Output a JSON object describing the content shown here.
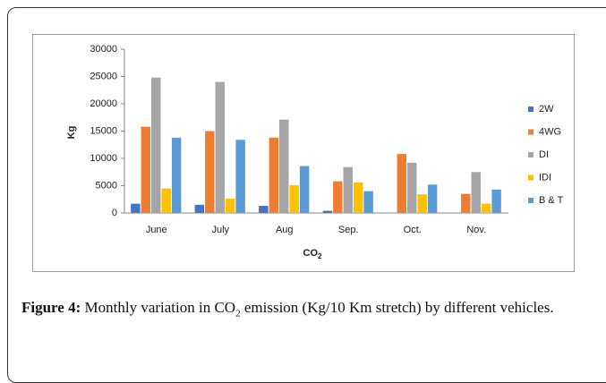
{
  "chart_data": {
    "type": "bar",
    "y_label": "Kg",
    "x_label": {
      "text": "CO",
      "subscript": "2"
    },
    "categories": [
      "June",
      "July",
      "Aug",
      "Sep.",
      "Oct.",
      "Nov."
    ],
    "series": [
      {
        "name": "2W",
        "color": "#4472c4",
        "values": [
          1700,
          1500,
          1300,
          400,
          0,
          0
        ]
      },
      {
        "name": "4WG",
        "color": "#ed7d31",
        "values": [
          15800,
          15000,
          13800,
          5800,
          10800,
          3500
        ]
      },
      {
        "name": "DI",
        "color": "#a5a5a5",
        "values": [
          24800,
          24000,
          17100,
          8400,
          9200,
          7500
        ]
      },
      {
        "name": "IDI",
        "color": "#ffc000",
        "values": [
          4500,
          2600,
          5100,
          5600,
          3400,
          1700
        ]
      },
      {
        "name": "B & T",
        "color": "#5b9bd5",
        "values": [
          13800,
          13400,
          8600,
          4000,
          5200,
          4300
        ]
      }
    ],
    "ylim": [
      0,
      30000
    ],
    "yticks": [
      0,
      5000,
      10000,
      15000,
      20000,
      25000,
      30000
    ],
    "legend": "right"
  },
  "caption": {
    "label": "Figure 4:",
    "text": "Monthly variation in CO",
    "subscript": "2",
    "text_end": "emission (Kg/10 Km stretch) by different vehicles."
  }
}
